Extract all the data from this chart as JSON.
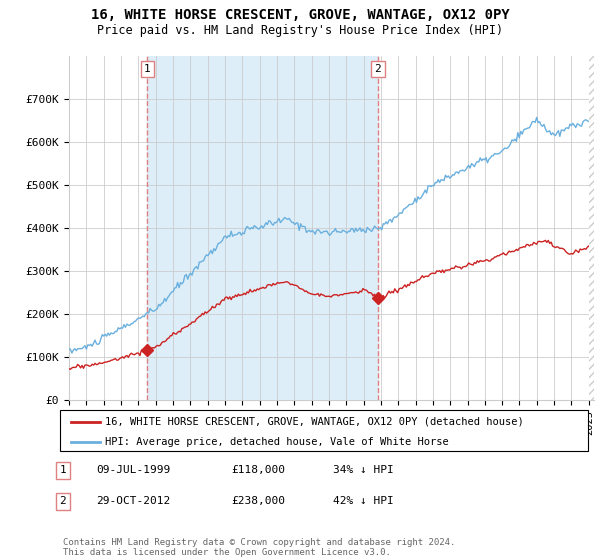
{
  "title": "16, WHITE HORSE CRESCENT, GROVE, WANTAGE, OX12 0PY",
  "subtitle": "Price paid vs. HM Land Registry's House Price Index (HPI)",
  "legend_line1": "16, WHITE HORSE CRESCENT, GROVE, WANTAGE, OX12 0PY (detached house)",
  "legend_line2": "HPI: Average price, detached house, Vale of White Horse",
  "annotation1": {
    "num": "1",
    "date": "09-JUL-1999",
    "price": "£118,000",
    "pct": "34% ↓ HPI"
  },
  "annotation2": {
    "num": "2",
    "date": "29-OCT-2012",
    "price": "£238,000",
    "pct": "42% ↓ HPI"
  },
  "footer": "Contains HM Land Registry data © Crown copyright and database right 2024.\nThis data is licensed under the Open Government Licence v3.0.",
  "hpi_color": "#6ab0de",
  "sale_color": "#cc2222",
  "vline_color": "#e08080",
  "fill_color": "#deeef8",
  "ylim": [
    0,
    800000
  ],
  "yticks": [
    0,
    100000,
    200000,
    300000,
    400000,
    500000,
    600000,
    700000
  ],
  "ytick_labels": [
    "£0",
    "£100K",
    "£200K",
    "£300K",
    "£400K",
    "£500K",
    "£600K",
    "£700K"
  ],
  "sale1_x": 1999.53,
  "sale1_y": 118000,
  "sale2_x": 2012.83,
  "sale2_y": 238000,
  "xmin": 1995.0,
  "xmax": 2025.3
}
